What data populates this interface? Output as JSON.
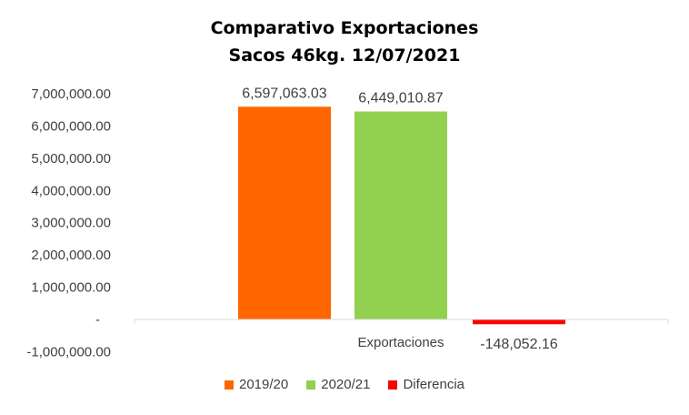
{
  "chart_data": {
    "type": "bar",
    "title_lines": [
      "Comparativo  Exportaciones",
      "Sacos 46kg. 12/07/2021"
    ],
    "categories": [
      "Exportaciones"
    ],
    "series": [
      {
        "name": "2019/20",
        "values": [
          6597063.03
        ],
        "label": "6,597,063.03",
        "color": "#FF6600"
      },
      {
        "name": "2020/21",
        "values": [
          6449010.87
        ],
        "label": "6,449,010.87",
        "color": "#92D050"
      },
      {
        "name": "Diferencia",
        "values": [
          -148052.16
        ],
        "label": "-148,052.16",
        "color": "#FF0000"
      }
    ],
    "yticks": [
      {
        "value": 7000000,
        "label": "7,000,000.00"
      },
      {
        "value": 6000000,
        "label": "6,000,000.00"
      },
      {
        "value": 5000000,
        "label": "5,000,000.00"
      },
      {
        "value": 4000000,
        "label": "4,000,000.00"
      },
      {
        "value": 3000000,
        "label": "3,000,000.00"
      },
      {
        "value": 2000000,
        "label": "2,000,000.00"
      },
      {
        "value": 1000000,
        "label": "1,000,000.00"
      },
      {
        "value": 0,
        "label": "-"
      },
      {
        "value": -1000000,
        "label": "-1,000,000.00"
      }
    ],
    "ylim": [
      -1000000,
      7000000
    ],
    "xlabel": "",
    "ylabel": "",
    "grid": false,
    "legend_position": "bottom"
  }
}
